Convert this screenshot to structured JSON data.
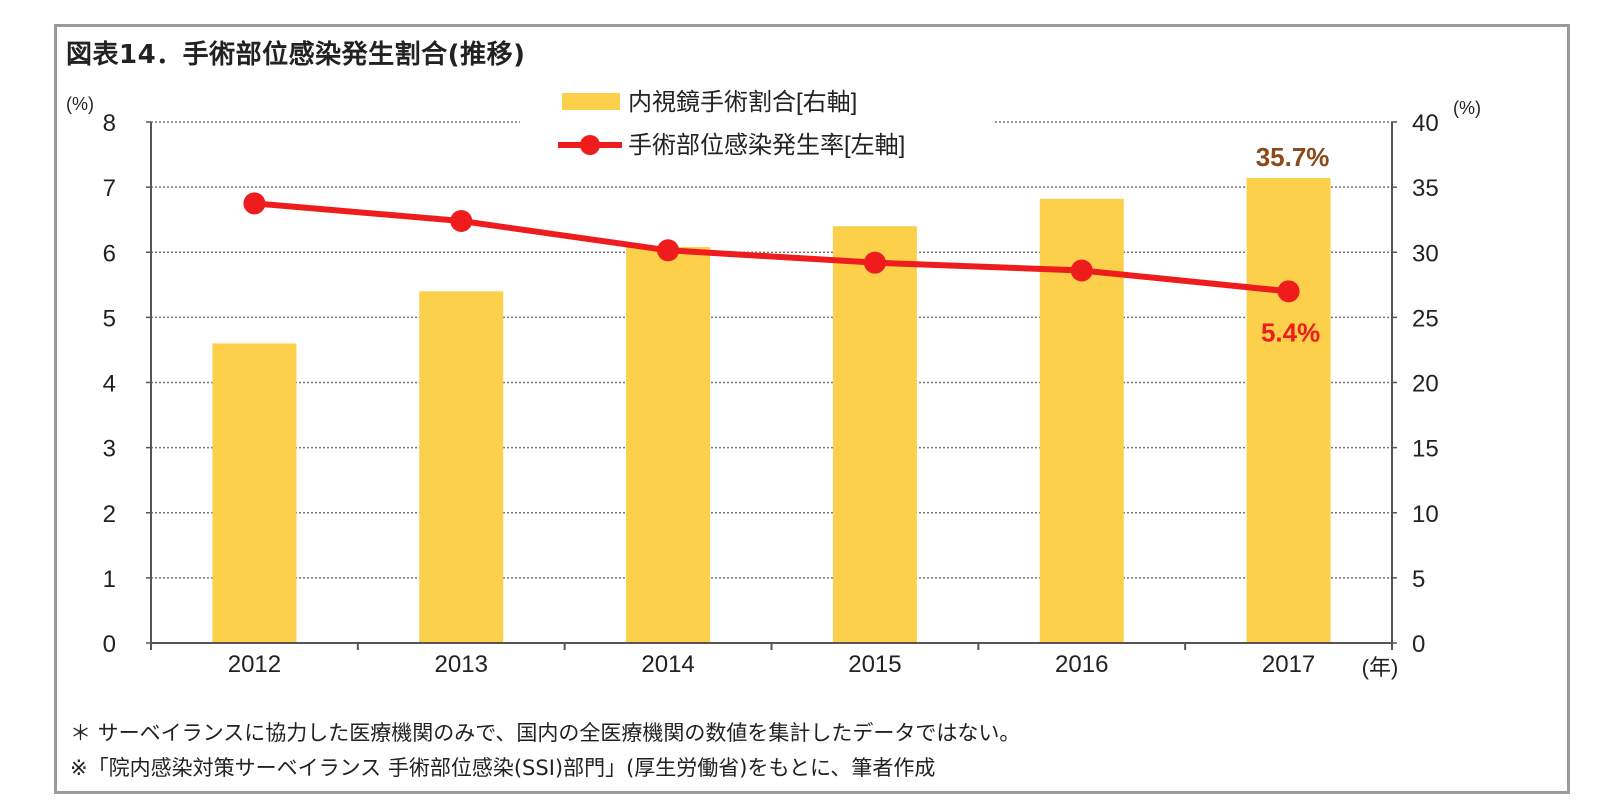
{
  "title": "図表14．手術部位感染発生割合(推移)",
  "notes": [
    "＊ サーベイランスに協力した医療機関のみで、国内の全医療機関の数値を集計したデータではない。",
    "※「院内感染対策サーベイランス 手術部位感染(SSI)部門」(厚生労働省)をもとに、筆者作成"
  ],
  "colors": {
    "bar": "#FCD04A",
    "line": "#EE1C1C",
    "bar_label": "#8B4A17",
    "line_label": "#EE1C1C",
    "grid": "#777777",
    "frame": "#9a9a9a"
  },
  "chart_data": {
    "type": "bar+line",
    "categories": [
      "2012",
      "2013",
      "2014",
      "2015",
      "2016",
      "2017"
    ],
    "xlabel": "(年)",
    "y_left": {
      "label": "(%)",
      "lim": [
        0,
        8
      ],
      "ticks": [
        "0",
        "1",
        "2",
        "3",
        "4",
        "5",
        "6",
        "7",
        "8"
      ]
    },
    "y_right": {
      "label": "(%)",
      "lim": [
        0,
        40
      ],
      "ticks": [
        "0",
        "5",
        "10",
        "15",
        "20",
        "25",
        "30",
        "35",
        "40"
      ]
    },
    "grid": true,
    "legend_position": "top-center",
    "series": [
      {
        "name": "内視鏡手術割合[右軸]",
        "type": "bar",
        "axis": "right",
        "values": [
          23.0,
          27.0,
          30.4,
          32.0,
          34.1,
          35.7
        ]
      },
      {
        "name": "手術部位感染発生率[左軸]",
        "type": "line",
        "axis": "left",
        "values": [
          6.75,
          6.48,
          6.03,
          5.84,
          5.72,
          5.4
        ]
      }
    ],
    "annotations": [
      {
        "series": 0,
        "index": 5,
        "text": "35.7%"
      },
      {
        "series": 1,
        "index": 5,
        "text": "5.4%"
      }
    ]
  }
}
